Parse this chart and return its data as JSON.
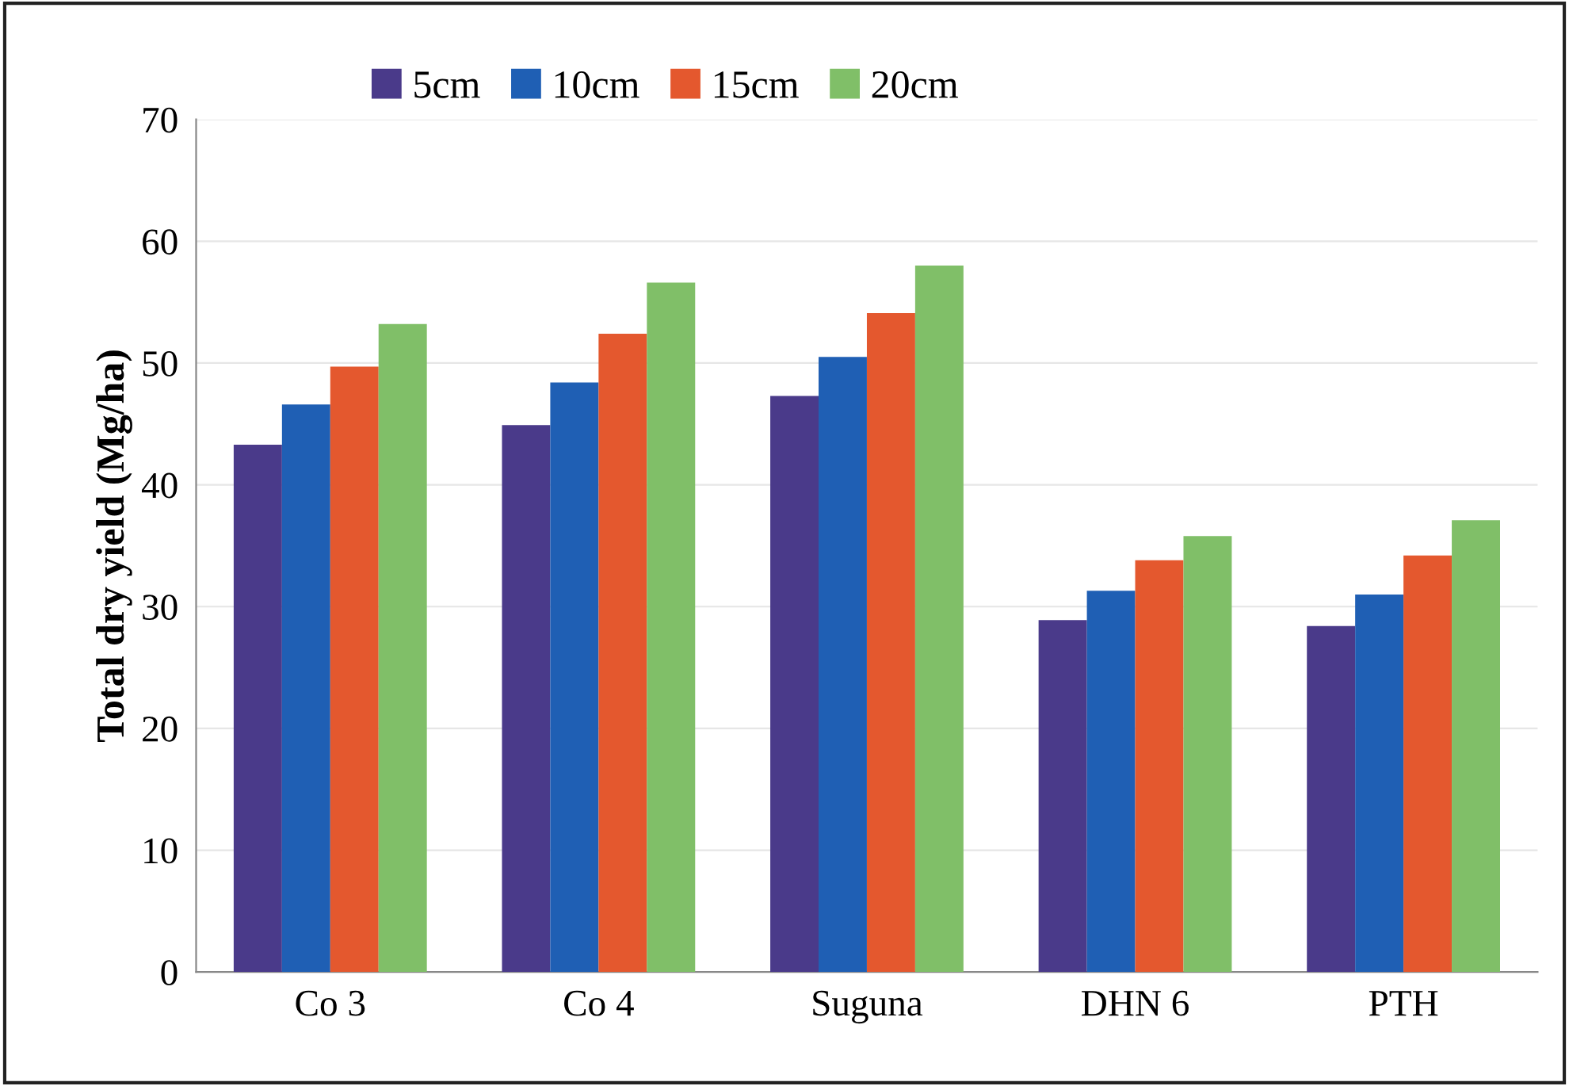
{
  "chart_data": {
    "type": "bar",
    "ylabel": "Total dry yield (Mg/ha)",
    "categories": [
      "Co 3",
      "Co 4",
      "Suguna",
      "DHN 6",
      "PTH"
    ],
    "series": [
      {
        "name": "5cm",
        "color": "#4a3a8a",
        "values": [
          43.3,
          44.9,
          47.3,
          28.9,
          28.4
        ]
      },
      {
        "name": "10cm",
        "color": "#1f5fb4",
        "values": [
          46.6,
          48.4,
          50.5,
          31.3,
          31.0
        ]
      },
      {
        "name": "15cm",
        "color": "#e4582e",
        "values": [
          49.7,
          52.4,
          54.1,
          33.8,
          34.2
        ]
      },
      {
        "name": "20cm",
        "color": "#80bf68",
        "values": [
          53.2,
          56.6,
          58.0,
          35.8,
          37.1
        ]
      }
    ],
    "ylim": [
      0,
      70
    ],
    "yticks": [
      0,
      10,
      20,
      30,
      40,
      50,
      60,
      70
    ],
    "grid": "y",
    "legend": "top"
  }
}
